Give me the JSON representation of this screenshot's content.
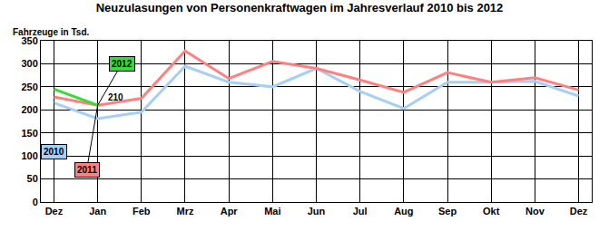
{
  "chart_data": {
    "type": "line",
    "title": "Neuzulasungen von Personenkraftwagen im Jahresverlauf 2010 bis 2012",
    "y_label": "Fahrzeuge in Tsd.",
    "categories": [
      "Dez",
      "Jan",
      "Feb",
      "Mrz",
      "Apr",
      "Mai",
      "Jun",
      "Jul",
      "Aug",
      "Sep",
      "Okt",
      "Nov",
      "Dez"
    ],
    "series": [
      {
        "name": "2010",
        "color": "#a6cff5",
        "values": [
          215,
          181,
          195,
          295,
          260,
          250,
          290,
          240,
          203,
          260,
          260,
          262,
          230
        ]
      },
      {
        "name": "2011",
        "color": "#ff8080",
        "values": [
          228,
          210,
          225,
          328,
          268,
          305,
          290,
          265,
          238,
          281,
          260,
          270,
          243
        ]
      },
      {
        "name": "2012",
        "color": "#33dd33",
        "values": [
          245,
          210,
          null,
          null,
          null,
          null,
          null,
          null,
          null,
          null,
          null,
          null,
          null
        ]
      }
    ],
    "ylim": [
      0,
      350
    ],
    "yticks": [
      0,
      50,
      100,
      150,
      200,
      250,
      300,
      350
    ],
    "grid": true,
    "annotations": [
      {
        "text": "210",
        "x": "Jan",
        "y": 210
      }
    ]
  }
}
